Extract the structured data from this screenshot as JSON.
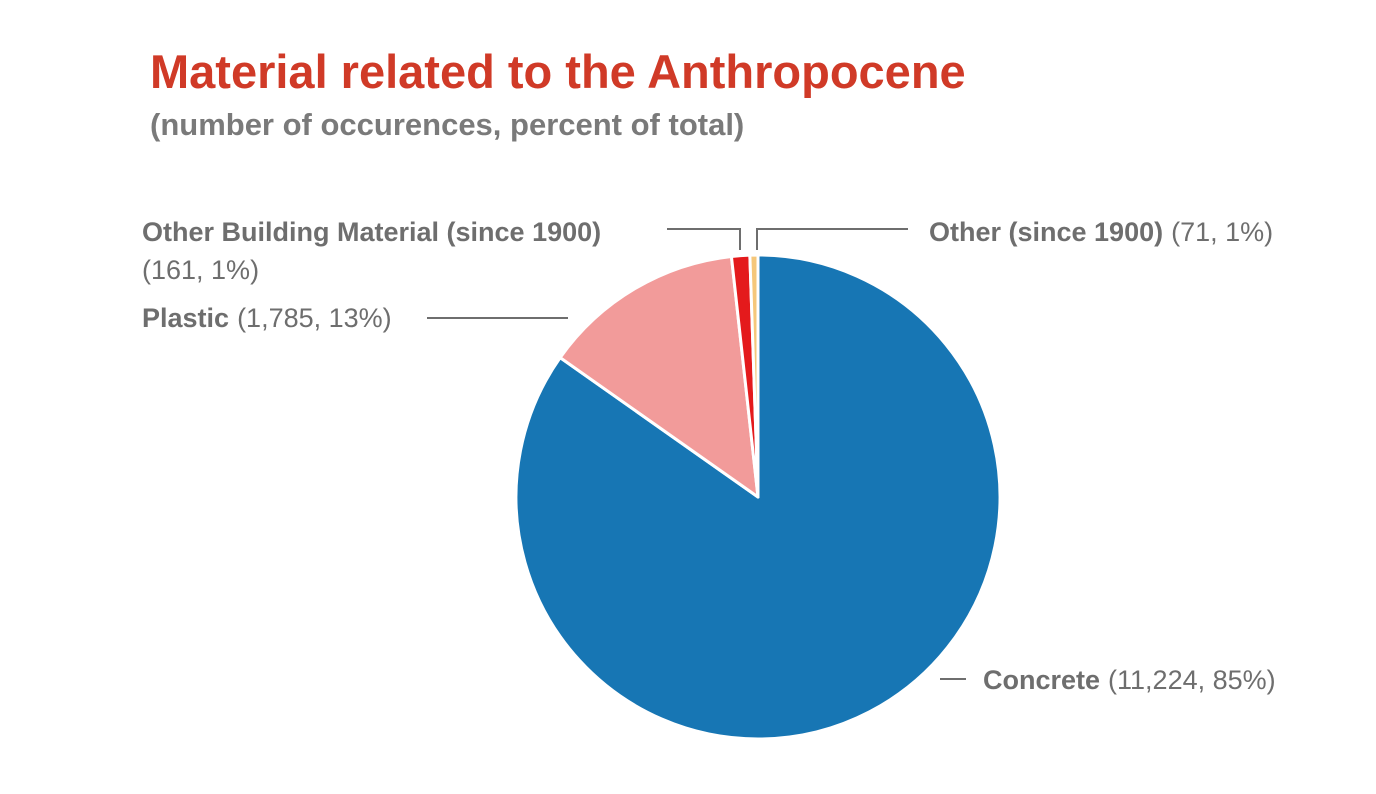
{
  "title": "Material related to the Anthropocene",
  "subtitle": "(number of occurences, percent of total)",
  "chart_data": {
    "type": "pie",
    "title": "Material related to the Anthropocene",
    "subtitle": "(number of occurences, percent of total)",
    "slices": [
      {
        "name": "Concrete",
        "value": 11224,
        "label_value": "(11,224, 85%)",
        "color": "#1776b4"
      },
      {
        "name": "Plastic",
        "value": 1785,
        "label_value": "(1,785, 13%)",
        "color": "#f29b9a"
      },
      {
        "name": "Other Building Material (since 1900)",
        "value": 161,
        "label_value": "(161, 1%)",
        "color": "#e41a1c"
      },
      {
        "name": "Other (since 1900)",
        "value": 71,
        "label_value": "(71, 1%)",
        "color": "#f5c77a"
      }
    ],
    "legend": "none"
  }
}
